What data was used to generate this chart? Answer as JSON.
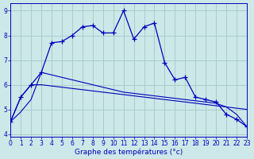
{
  "xlabel": "Graphe des températures (°c)",
  "background_color": "#cce8e8",
  "grid_color": "#aacccc",
  "line_color": "#0000bb",
  "xlim": [
    0,
    23
  ],
  "ylim": [
    3.9,
    9.3
  ],
  "yticks": [
    4,
    5,
    6,
    7,
    8,
    9
  ],
  "xticks": [
    0,
    1,
    2,
    3,
    4,
    5,
    6,
    7,
    8,
    9,
    10,
    11,
    12,
    13,
    14,
    15,
    16,
    17,
    18,
    19,
    20,
    21,
    22,
    23
  ],
  "s1_x": [
    0,
    1,
    2,
    3,
    4,
    5,
    6,
    7,
    8,
    9,
    10,
    11,
    12,
    13,
    14,
    15,
    16,
    17,
    18,
    19,
    20,
    21,
    22,
    23
  ],
  "s1_y": [
    4.5,
    5.5,
    6.0,
    6.5,
    7.7,
    7.75,
    8.0,
    8.35,
    8.4,
    8.1,
    8.1,
    9.0,
    7.85,
    8.35,
    8.5,
    6.9,
    6.2,
    6.3,
    5.5,
    5.4,
    5.3,
    4.8,
    4.6,
    4.3
  ],
  "s2_x": [
    0,
    1,
    2,
    3,
    4,
    5,
    6,
    7,
    8,
    9,
    10,
    11,
    12,
    13,
    14,
    15,
    16,
    17,
    18,
    19,
    20,
    21,
    22,
    23
  ],
  "s2_y": [
    4.5,
    4.9,
    5.4,
    6.5,
    6.4,
    6.3,
    6.2,
    6.1,
    6.0,
    5.9,
    5.8,
    5.7,
    5.65,
    5.6,
    5.55,
    5.5,
    5.45,
    5.4,
    5.35,
    5.3,
    5.25,
    5.1,
    4.8,
    4.3
  ],
  "s3_x": [
    0,
    1,
    2,
    3,
    4,
    5,
    6,
    7,
    8,
    9,
    10,
    11,
    12,
    13,
    14,
    15,
    16,
    17,
    18,
    19,
    20,
    21,
    22,
    23
  ],
  "s3_y": [
    4.5,
    5.5,
    6.0,
    6.0,
    5.95,
    5.9,
    5.85,
    5.8,
    5.75,
    5.7,
    5.65,
    5.6,
    5.55,
    5.5,
    5.45,
    5.4,
    5.35,
    5.3,
    5.25,
    5.2,
    5.15,
    5.1,
    5.05,
    5.0
  ]
}
